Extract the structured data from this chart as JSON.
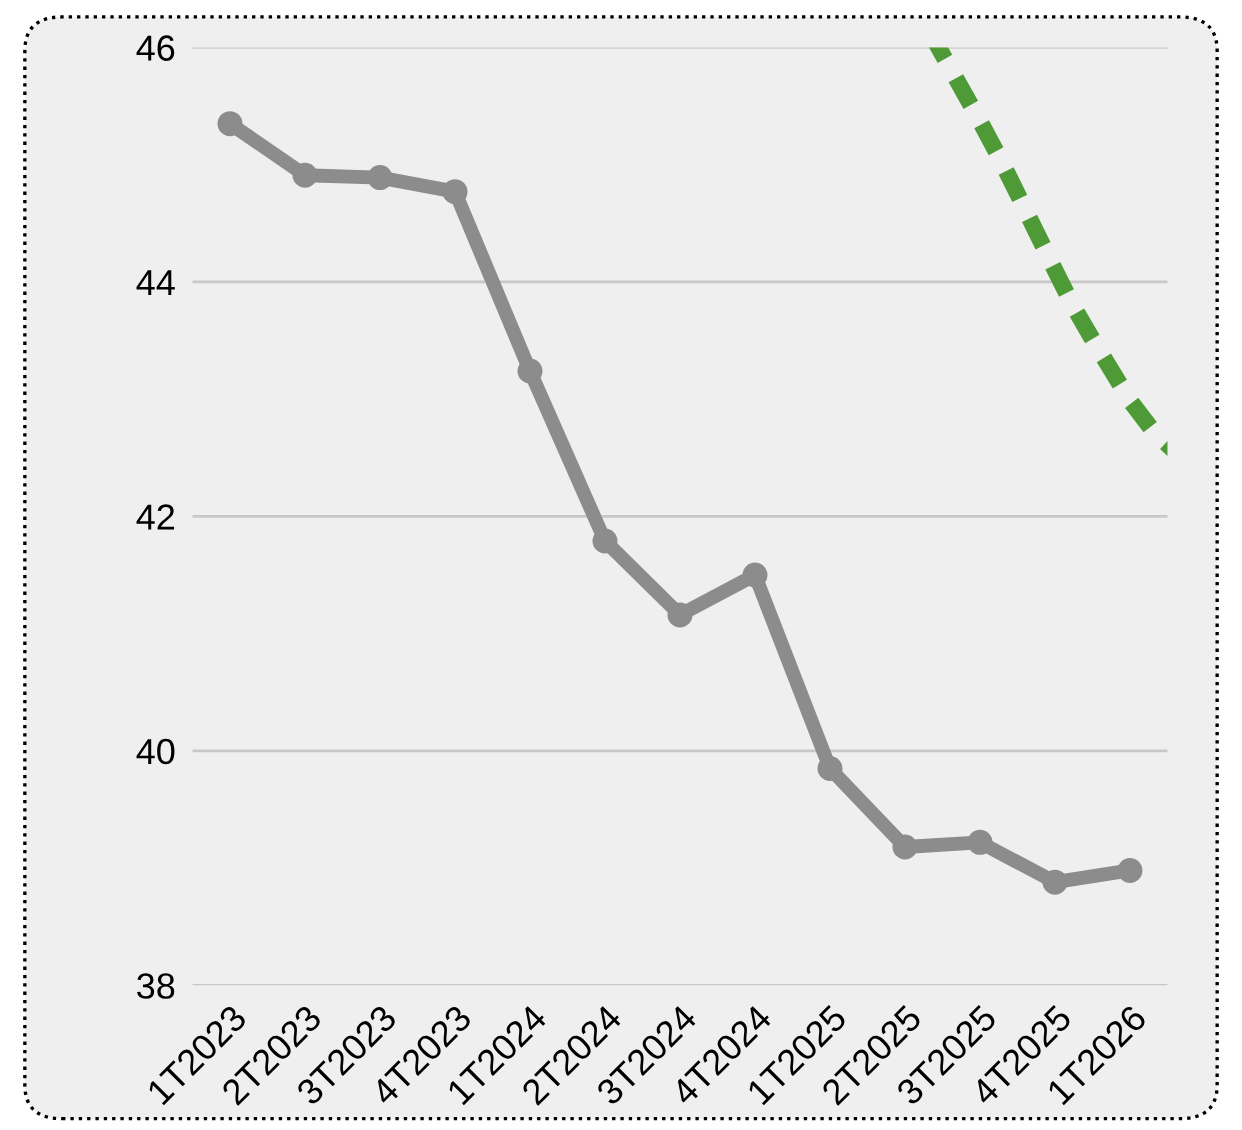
{
  "chart_data": {
    "type": "line",
    "categories": [
      "1T2023",
      "2T2023",
      "3T2023",
      "4T2023",
      "1T2024",
      "2T2024",
      "3T2024",
      "4T2024",
      "1T2025",
      "2T2025",
      "3T2025",
      "4T2025",
      "1T2026"
    ],
    "series": [
      {
        "color": "#8c8c8c",
        "values": [
          45.35,
          44.91,
          44.89,
          44.77,
          43.24,
          41.79,
          41.16,
          41.5,
          39.85,
          39.18,
          39.22,
          38.88,
          38.98
        ]
      }
    ],
    "ylim": [
      38,
      46
    ],
    "yticks": [
      38,
      40,
      42,
      44,
      46
    ],
    "grid": "y",
    "marker": "circle",
    "line_style": "solid"
  }
}
